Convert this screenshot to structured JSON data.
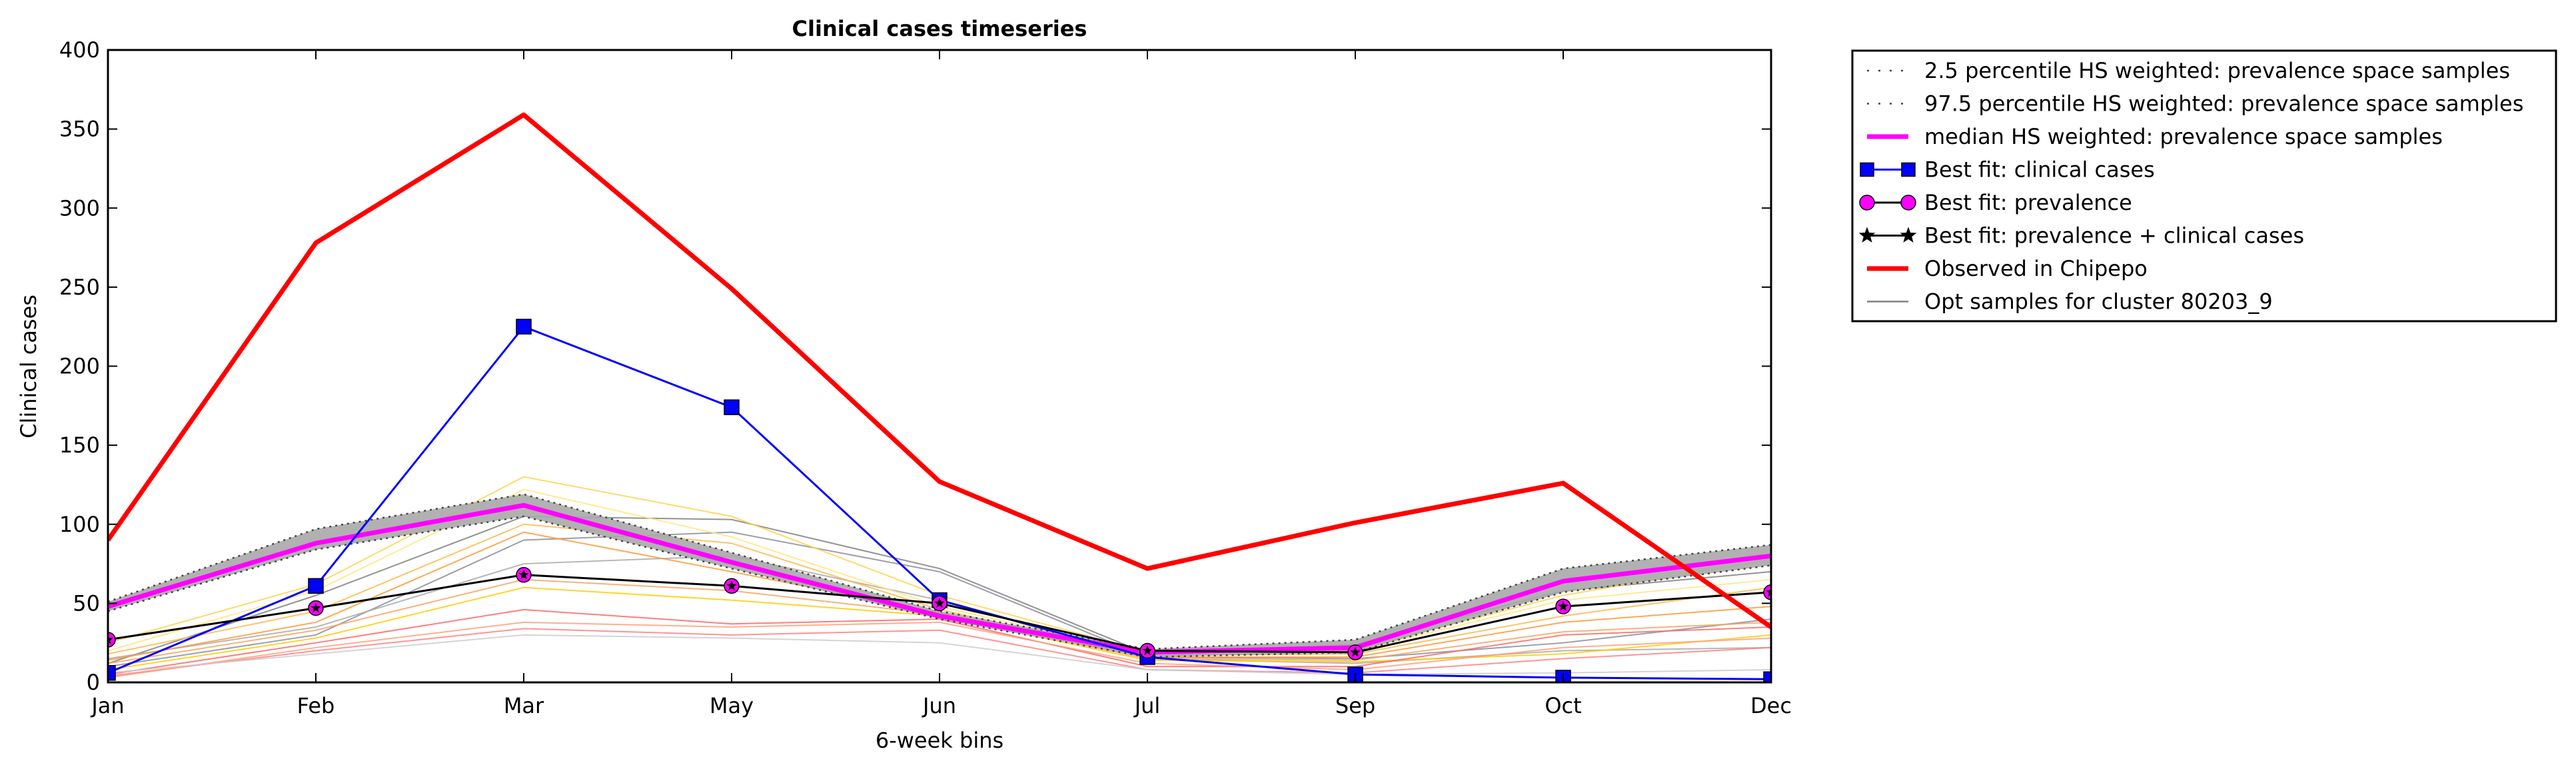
{
  "chart_data": {
    "type": "line",
    "title": "Clinical cases timeseries",
    "xlabel": "6-week bins",
    "ylabel": "Clinical cases",
    "categories": [
      "Jan",
      "Feb",
      "Mar",
      "May",
      "Jun",
      "Jul",
      "Sep",
      "Oct",
      "Dec"
    ],
    "yticks": [
      0,
      50,
      100,
      150,
      200,
      250,
      300,
      350,
      400
    ],
    "ylim": [
      0,
      400
    ],
    "grid": false,
    "legend_position": "outside-right-top",
    "series": [
      {
        "name": "2.5 percentile HS weighted: prevalence space samples",
        "style": "dotted",
        "color": "#555555",
        "values": [
          45,
          84,
          105,
          72,
          40,
          16,
          19,
          57,
          74
        ]
      },
      {
        "name": "97.5 percentile HS weighted: prevalence space samples",
        "style": "dotted",
        "color": "#555555",
        "values": [
          51,
          97,
          119,
          82,
          45,
          21,
          27,
          72,
          87
        ]
      },
      {
        "name": "median HS weighted: prevalence space samples",
        "style": "solid",
        "color": "#ff00ff",
        "values": [
          48,
          88,
          112,
          76,
          42,
          19,
          22,
          64,
          80
        ]
      },
      {
        "name": "Best fit: clinical cases",
        "style": "solid",
        "marker": "square",
        "color": "#0000ff",
        "values": [
          6,
          61,
          225,
          174,
          52,
          16,
          5,
          3,
          2
        ]
      },
      {
        "name": "Best fit: prevalence",
        "style": "solid",
        "marker": "circle",
        "color": "#ff00ff",
        "values": [
          27,
          47,
          68,
          61,
          50,
          20,
          19,
          48,
          57
        ]
      },
      {
        "name": "Best fit: prevalence + clinical cases",
        "style": "solid",
        "marker": "star",
        "color": "#000000",
        "values": [
          27,
          47,
          68,
          61,
          50,
          20,
          19,
          48,
          57
        ]
      },
      {
        "name": "Observed in Chipepo",
        "style": "solid",
        "color": "#ff0000",
        "values": [
          90,
          278,
          359,
          249,
          127,
          72,
          101,
          126,
          35
        ]
      },
      {
        "name": "Opt samples for cluster 80203_9",
        "style": "solid",
        "color": "#808080",
        "values": [
          12,
          55,
          105,
          103,
          72,
          18,
          24,
          58,
          70
        ]
      }
    ],
    "samples": [
      {
        "color": "#7f7f7f",
        "values": [
          12,
          55,
          105,
          103,
          72,
          18,
          24,
          58,
          70
        ]
      },
      {
        "color": "#8c8c9c",
        "values": [
          10,
          30,
          90,
          95,
          70,
          16,
          15,
          25,
          40
        ]
      },
      {
        "color": "#a9a9a9",
        "values": [
          15,
          35,
          75,
          80,
          52,
          15,
          12,
          20,
          22
        ]
      },
      {
        "color": "#ffd24d",
        "values": [
          25,
          62,
          130,
          105,
          55,
          19,
          21,
          55,
          78
        ]
      },
      {
        "color": "#ffe680",
        "values": [
          20,
          58,
          122,
          92,
          48,
          18,
          20,
          52,
          65
        ]
      },
      {
        "color": "#ffb84d",
        "values": [
          18,
          45,
          100,
          88,
          46,
          17,
          18,
          42,
          60
        ]
      },
      {
        "color": "#ff9933",
        "values": [
          14,
          38,
          95,
          70,
          44,
          16,
          16,
          38,
          48
        ]
      },
      {
        "color": "#f4a460",
        "values": [
          12,
          33,
          65,
          58,
          43,
          15,
          14,
          32,
          38
        ]
      },
      {
        "color": "#ffcc00",
        "values": [
          8,
          28,
          60,
          52,
          42,
          14,
          13,
          18,
          30
        ]
      },
      {
        "color": "#ff6666",
        "values": [
          5,
          25,
          46,
          37,
          40,
          10,
          10,
          30,
          35
        ]
      },
      {
        "color": "#ff8080",
        "values": [
          4,
          20,
          34,
          30,
          33,
          8,
          6,
          15,
          22
        ]
      },
      {
        "color": "#ffa07a",
        "values": [
          3,
          22,
          38,
          35,
          38,
          12,
          8,
          22,
          28
        ]
      },
      {
        "color": "#cccccc",
        "values": [
          6,
          18,
          30,
          28,
          25,
          8,
          5,
          6,
          8
        ]
      }
    ]
  }
}
